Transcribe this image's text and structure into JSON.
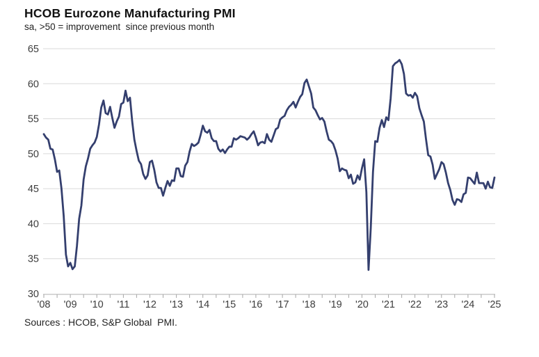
{
  "header": {
    "title": "HCOB Eurozone Manufacturing PMI",
    "subtitle": "sa, >50 = improvement  since previous month"
  },
  "footer": {
    "source": "Sources : HCOB, S&P Global  PMI."
  },
  "chart_data": {
    "type": "line",
    "title": "HCOB Eurozone Manufacturing PMI",
    "subtitle": "sa, >50 = improvement since previous month",
    "source": "Sources : HCOB, S&P Global PMI.",
    "grid": "horizontal",
    "legend": "none",
    "ylim": [
      30,
      65
    ],
    "y_ticks": [
      30,
      35,
      40,
      45,
      50,
      55,
      60,
      65
    ],
    "x_tick_labels": [
      "'08",
      "'09",
      "'10",
      "'11",
      "'12",
      "'13",
      "'14",
      "'15",
      "'16",
      "'17",
      "'18",
      "'19",
      "'20",
      "'21",
      "'22",
      "'23",
      "'24",
      "'25"
    ],
    "minor_tick_months": 6,
    "line_color": "#343f6e",
    "gridline_color": "#d9d9d9",
    "axis_color": "#bfbfbf",
    "tick_color": "#a6a6a6",
    "label_color": "#3d3d3d",
    "series": [
      {
        "name": "Eurozone Manufacturing PMI",
        "frequency": "monthly",
        "start": "2008-01",
        "end": "2025-01",
        "values": [
          52.8,
          52.3,
          52.0,
          50.7,
          50.6,
          49.2,
          47.4,
          47.6,
          45.0,
          41.1,
          35.6,
          33.9,
          34.4,
          33.5,
          33.9,
          36.8,
          40.7,
          42.6,
          46.3,
          48.2,
          49.3,
          50.7,
          51.2,
          51.6,
          52.4,
          54.2,
          56.6,
          57.6,
          55.8,
          55.6,
          56.7,
          55.1,
          53.7,
          54.6,
          55.3,
          57.1,
          57.3,
          59.0,
          57.5,
          58.0,
          54.6,
          52.0,
          50.4,
          49.0,
          48.5,
          47.1,
          46.4,
          46.9,
          48.8,
          49.0,
          47.7,
          45.9,
          45.1,
          45.1,
          44.0,
          45.1,
          46.1,
          45.4,
          46.2,
          46.1,
          47.9,
          47.9,
          46.8,
          46.7,
          48.3,
          48.8,
          50.3,
          51.4,
          51.1,
          51.3,
          51.6,
          52.7,
          54.0,
          53.2,
          53.0,
          53.4,
          52.2,
          51.8,
          51.8,
          50.7,
          50.3,
          50.6,
          50.1,
          50.6,
          51.0,
          51.0,
          52.2,
          52.0,
          52.2,
          52.5,
          52.4,
          52.3,
          52.0,
          52.3,
          52.8,
          53.2,
          52.3,
          51.2,
          51.6,
          51.7,
          51.5,
          52.8,
          52.0,
          51.7,
          52.6,
          53.5,
          53.7,
          54.9,
          55.2,
          55.4,
          56.2,
          56.7,
          57.0,
          57.4,
          56.6,
          57.4,
          58.1,
          58.5,
          60.1,
          60.6,
          59.6,
          58.6,
          56.6,
          56.2,
          55.5,
          54.9,
          55.1,
          54.6,
          53.2,
          52.0,
          51.8,
          51.4,
          50.5,
          49.3,
          47.5,
          47.9,
          47.7,
          47.6,
          46.5,
          47.0,
          45.7,
          45.9,
          46.9,
          46.3,
          47.9,
          49.2,
          44.5,
          33.4,
          39.4,
          47.4,
          51.8,
          51.7,
          53.7,
          54.8,
          53.8,
          55.2,
          54.8,
          57.9,
          62.5,
          62.9,
          63.1,
          63.4,
          62.8,
          61.4,
          58.6,
          58.3,
          58.4,
          58.0,
          58.7,
          58.2,
          56.5,
          55.5,
          54.6,
          52.1,
          49.8,
          49.6,
          48.4,
          46.4,
          47.1,
          47.8,
          48.8,
          48.5,
          47.3,
          45.8,
          44.8,
          43.4,
          42.7,
          43.5,
          43.4,
          43.1,
          44.2,
          44.4,
          46.6,
          46.5,
          46.1,
          45.7,
          47.3,
          45.8,
          45.8,
          45.8,
          45.0,
          46.0,
          45.2,
          45.1,
          46.6
        ]
      }
    ]
  }
}
